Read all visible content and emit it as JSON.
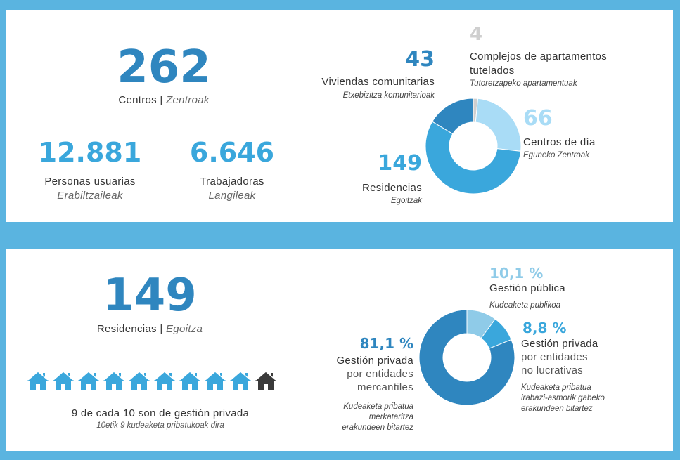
{
  "top": {
    "centros": {
      "value": "262",
      "label": "Centros",
      "sep": " | ",
      "label_eu": "Zentroak"
    },
    "personas": {
      "value": "12.881",
      "label": "Personas usuarias",
      "label_eu": "Erabiltzaileak"
    },
    "trabajadoras": {
      "value": "6.646",
      "label": "Trabajadoras",
      "label_eu": "Langileak"
    },
    "donut_labels": {
      "apartamentos": {
        "value": "4",
        "label1": "Complejos de apartamentos",
        "label2": "tutelados",
        "label_eu": "Tutoretzapeko apartamentuak"
      },
      "viviendas": {
        "value": "43",
        "label": "Viviendas comunitarias",
        "label_eu": "Etxebizitza komunitarioak"
      },
      "centros_dia": {
        "value": "66",
        "label": "Centros de día",
        "label_eu": "Eguneko Zentroak"
      },
      "residencias": {
        "value": "149",
        "label": "Residencias",
        "label_eu": "Egoitzak"
      }
    }
  },
  "bottom": {
    "residencias": {
      "value": "149",
      "label": "Residencias",
      "sep": " | ",
      "label_eu": "Egoitza"
    },
    "ratio": {
      "label": "9 de cada 10 son de gestión privada",
      "label_eu": "10etik 9 kudeaketa pribatukoak dira"
    },
    "donut_labels": {
      "publica": {
        "value": "10,1 %",
        "label": "Gestión pública",
        "label_eu": "Kudeaketa publikoa"
      },
      "no_lucrativa": {
        "value": "8,8 %",
        "label1": "Gestión privada",
        "label2": "por entidades",
        "label3": "no lucrativas",
        "label_eu1": "Kudeaketa pribatua",
        "label_eu2": "irabazi-asmorik gabeko",
        "label_eu3": "erakundeen bitartez"
      },
      "mercantil": {
        "value": "81,1 %",
        "label1": "Gestión privada",
        "label2": "por entidades",
        "label3": "mercantiles",
        "label_eu1": "Kudeaketa pribatua",
        "label_eu2": "merkataritza",
        "label_eu3": "erakundeen bitartez"
      }
    }
  },
  "icons": {
    "house_filled_count": 9,
    "house_total": 10,
    "house_icon": "house-icon"
  },
  "colors": {
    "background": "#5ab4e0",
    "dark_blue": "#2f86bf",
    "mid_blue": "#3aa7dc",
    "light_blue": "#8fcbe8",
    "pale_blue": "#a9dcf6",
    "gray": "#cfcfcf",
    "house_gray": "#3a3a3a"
  },
  "chart_data": [
    {
      "type": "pie",
      "categories": [
        "Complejos de apartamentos tutelados",
        "Centros de día",
        "Residencias",
        "Viviendas comunitarias"
      ],
      "values": [
        4,
        66,
        149,
        43
      ],
      "colors": [
        "#cfcfcf",
        "#a9dcf6",
        "#3aa7dc",
        "#2f86bf"
      ]
    },
    {
      "type": "pie",
      "categories": [
        "Gestión pública",
        "Gestión privada por entidades no lucrativas",
        "Gestión privada por entidades mercantiles"
      ],
      "values": [
        10.1,
        8.8,
        81.1
      ],
      "colors": [
        "#8fcbe8",
        "#3aa7dc",
        "#2f86bf"
      ]
    }
  ]
}
